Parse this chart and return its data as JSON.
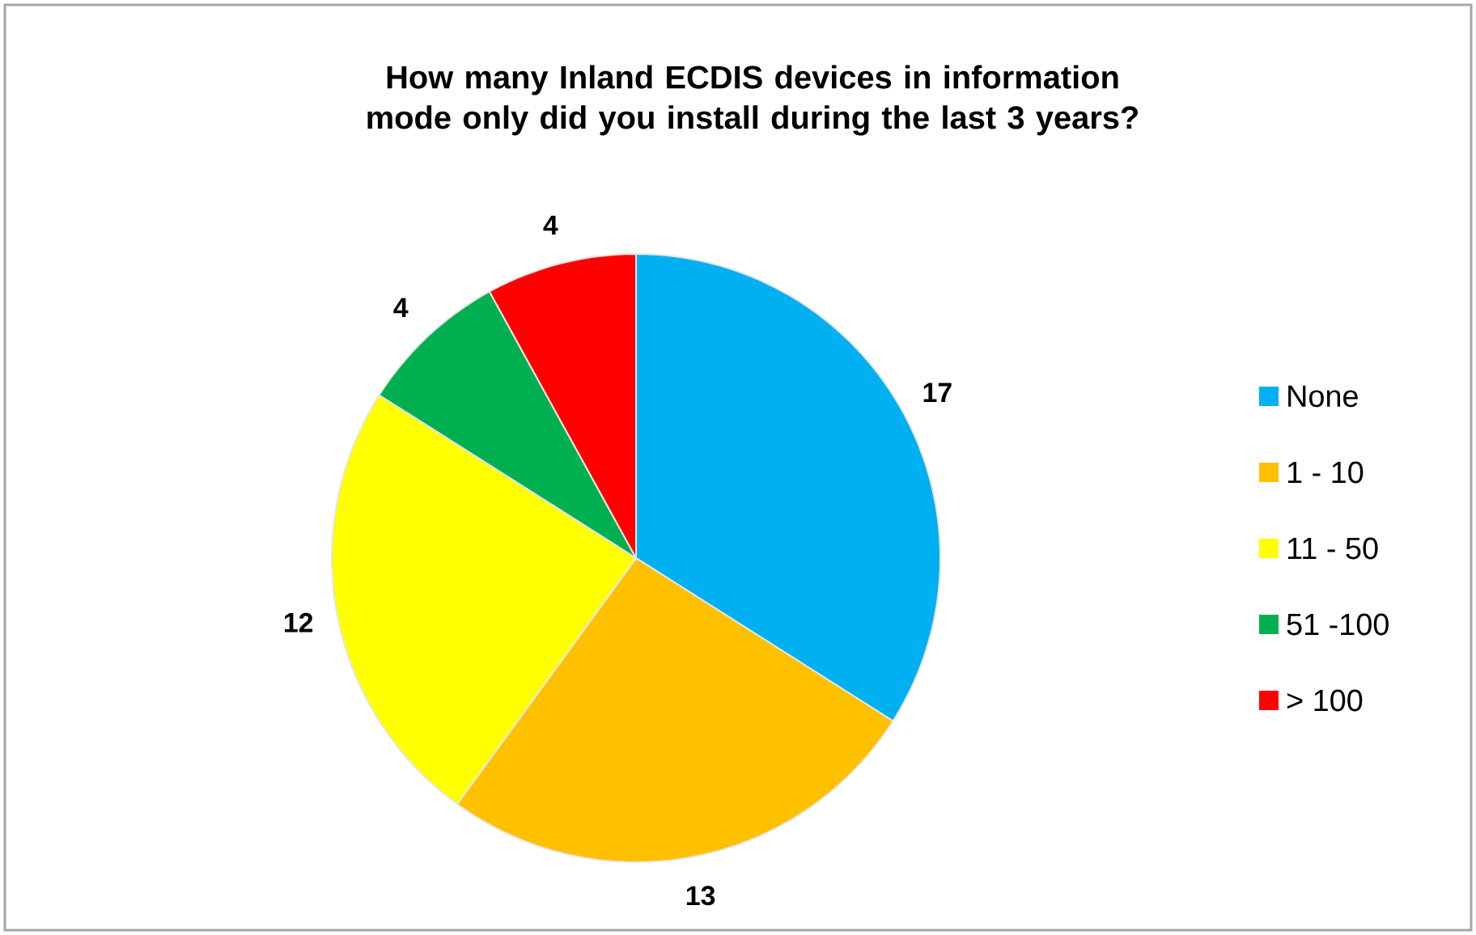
{
  "chart_data": {
    "type": "pie",
    "title": "How many Inland ECDIS devices in information mode only did you install during the last 3 years?",
    "categories": [
      "None",
      "1 - 10",
      "11 - 50",
      "51 -100",
      "> 100"
    ],
    "values": [
      17,
      13,
      12,
      4,
      4
    ],
    "colors": [
      "#00b0f0",
      "#ffc000",
      "#ffff00",
      "#00b050",
      "#ff0000"
    ],
    "data_labels": true,
    "legend": "right"
  }
}
